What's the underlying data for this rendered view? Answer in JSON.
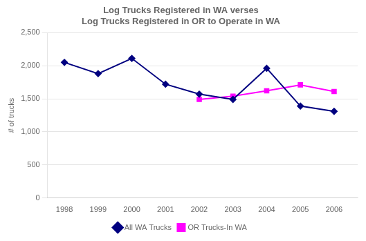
{
  "chart_data": {
    "type": "line",
    "title": "Log Trucks Registered in WA verses\nLog Trucks Registered in OR to Operate in WA",
    "y_label": "# of trucks",
    "x": [
      1998,
      1999,
      2000,
      2001,
      2002,
      2003,
      2004,
      2005,
      2006
    ],
    "series": [
      {
        "name": "All WA Trucks",
        "color": "#000080",
        "marker": "diamond",
        "values": [
          2050,
          1880,
          2110,
          1720,
          1570,
          1490,
          1960,
          1390,
          1310
        ]
      },
      {
        "name": "OR Trucks-In WA",
        "color": "#FF00FF",
        "marker": "square",
        "values": [
          null,
          null,
          null,
          null,
          1490,
          1540,
          1620,
          1710,
          1610
        ]
      }
    ],
    "xlim": [
      1997.5,
      2006.7
    ],
    "xticks": [
      1998,
      1999,
      2000,
      2001,
      2002,
      2003,
      2004,
      2005,
      2006
    ],
    "ylim": [
      0,
      2500
    ],
    "yticks": [
      0,
      500,
      {
        "value": 1000,
        "label": "1,000"
      },
      {
        "value": 1500,
        "label": "1,500"
      },
      {
        "value": 2000,
        "label": "2,000"
      },
      {
        "value": 2500,
        "label": "2,500"
      }
    ],
    "grid": "y",
    "legend": "bottom"
  }
}
